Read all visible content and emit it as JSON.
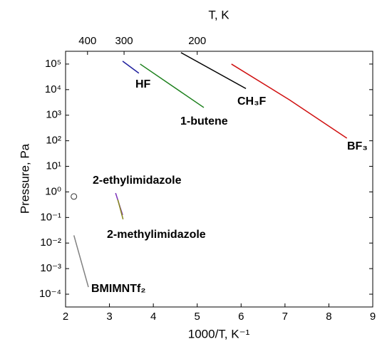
{
  "chart_data": {
    "type": "line",
    "xlabel": "1000/T, K⁻¹",
    "ylabel": "Pressure, Pa",
    "x2label": "T, K",
    "xlim": [
      2,
      9
    ],
    "xticks": [
      2,
      3,
      4,
      5,
      6,
      7,
      8,
      9
    ],
    "x2ticks": [
      {
        "value": 2.5,
        "label": "400"
      },
      {
        "value": 3.333,
        "label": "300"
      },
      {
        "value": 5,
        "label": "200"
      }
    ],
    "ylim": [
      3.16e-05,
      316000
    ],
    "log_y": true,
    "yticks": [
      {
        "value": 0.0001,
        "label": "10⁻⁴"
      },
      {
        "value": 0.001,
        "label": "10⁻³"
      },
      {
        "value": 0.01,
        "label": "10⁻²"
      },
      {
        "value": 0.1,
        "label": "10⁻¹"
      },
      {
        "value": 1,
        "label": "10⁰"
      },
      {
        "value": 10,
        "label": "10¹"
      },
      {
        "value": 100,
        "label": "10²"
      },
      {
        "value": 1000,
        "label": "10³"
      },
      {
        "value": 10000,
        "label": "10⁴"
      },
      {
        "value": 100000,
        "label": "10⁵"
      }
    ],
    "series": [
      {
        "name": "HF",
        "color": "#1f1f9e",
        "x": [
          3.3,
          3.67
        ],
        "values": [
          130000,
          44000
        ]
      },
      {
        "name": "1-butene",
        "color": "#1a7f1a",
        "x": [
          3.7,
          5.15
        ],
        "values": [
          100000,
          2000
        ]
      },
      {
        "name": "CH₃F",
        "color": "#000000",
        "x": [
          4.63,
          6.11
        ],
        "values": [
          280000,
          11000
        ]
      },
      {
        "name": "BF₃",
        "color": "#d01010",
        "x": [
          5.78,
          7.1,
          8.41
        ],
        "values": [
          100000,
          4000,
          126
        ]
      },
      {
        "name": "2-ethylimidazole",
        "color": "#7a2fb8",
        "x": [
          3.14,
          3.3
        ],
        "values": [
          0.9,
          0.125
        ]
      },
      {
        "name": "2-methylimidazole",
        "color": "#8a8a20",
        "x": [
          3.19,
          3.31
        ],
        "values": [
          0.5,
          0.085
        ]
      },
      {
        "name": "BMIMNTf₂",
        "color": "#808080",
        "x": [
          2.19,
          2.52
        ],
        "values": [
          0.02,
          0.00019
        ]
      },
      {
        "color": "#333333",
        "marker": "circle",
        "x": [
          2.19
        ],
        "values": [
          0.66
        ]
      }
    ]
  }
}
